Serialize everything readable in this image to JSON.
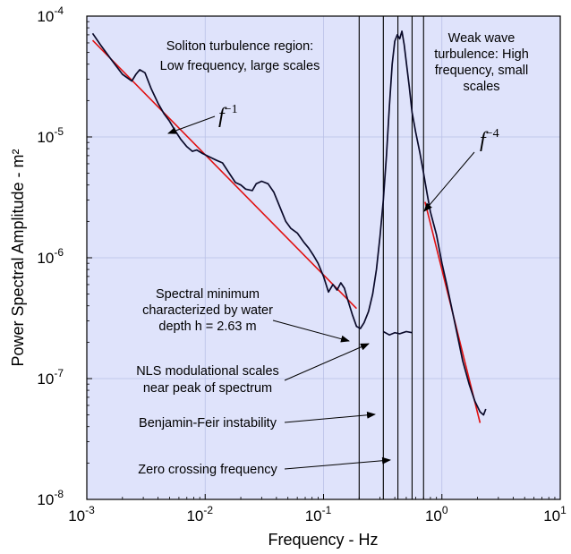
{
  "chart_data": {
    "type": "line",
    "xscale": "log",
    "yscale": "log",
    "xlim": [
      0.001,
      10
    ],
    "ylim": [
      1e-08,
      0.0001
    ],
    "xlabel": "Frequency - Hz",
    "ylabel": "Power Spectral Amplitude - m²",
    "grid": true,
    "background": "#dfe3fb",
    "colors": {
      "spectrum": "#0a0a2a",
      "fit": "#e01010",
      "grid": "#b9c0e6"
    },
    "x_ticks": [
      {
        "base": "10",
        "exp": "-3"
      },
      {
        "base": "10",
        "exp": "-2"
      },
      {
        "base": "10",
        "exp": "-1"
      },
      {
        "base": "10",
        "exp": "0"
      },
      {
        "base": "10",
        "exp": "1"
      }
    ],
    "y_ticks": [
      {
        "base": "10",
        "exp": "-8"
      },
      {
        "base": "10",
        "exp": "-7"
      },
      {
        "base": "10",
        "exp": "-6"
      },
      {
        "base": "10",
        "exp": "-5"
      },
      {
        "base": "10",
        "exp": "-4"
      }
    ],
    "spectrum": [
      [
        0.00112,
        7.2e-05
      ],
      [
        0.0013,
        5.8e-05
      ],
      [
        0.0016,
        4.4e-05
      ],
      [
        0.002,
        3.3e-05
      ],
      [
        0.0024,
        2.9e-05
      ],
      [
        0.0026,
        3.3e-05
      ],
      [
        0.0028,
        3.6e-05
      ],
      [
        0.0031,
        3.4e-05
      ],
      [
        0.0035,
        2.5e-05
      ],
      [
        0.004,
        1.9e-05
      ],
      [
        0.0045,
        1.55e-05
      ],
      [
        0.005,
        1.35e-05
      ],
      [
        0.0056,
        1.12e-05
      ],
      [
        0.0062,
        9.6e-06
      ],
      [
        0.007,
        8.3e-06
      ],
      [
        0.0078,
        7.6e-06
      ],
      [
        0.0085,
        7.8e-06
      ],
      [
        0.0095,
        7.3e-06
      ],
      [
        0.011,
        6.8e-06
      ],
      [
        0.0125,
        6.4e-06
      ],
      [
        0.014,
        6.1e-06
      ],
      [
        0.016,
        5e-06
      ],
      [
        0.018,
        4.2e-06
      ],
      [
        0.02,
        4e-06
      ],
      [
        0.022,
        3.7e-06
      ],
      [
        0.025,
        3.6e-06
      ],
      [
        0.027,
        4.1e-06
      ],
      [
        0.03,
        4.3e-06
      ],
      [
        0.034,
        4.1e-06
      ],
      [
        0.038,
        3.5e-06
      ],
      [
        0.043,
        2.6e-06
      ],
      [
        0.048,
        2e-06
      ],
      [
        0.053,
        1.75e-06
      ],
      [
        0.06,
        1.6e-06
      ],
      [
        0.068,
        1.35e-06
      ],
      [
        0.075,
        1.2e-06
      ],
      [
        0.082,
        1.05e-06
      ],
      [
        0.09,
        9e-07
      ],
      [
        0.1,
        7e-07
      ],
      [
        0.11,
        5.2e-07
      ],
      [
        0.12,
        6e-07
      ],
      [
        0.13,
        5.4e-07
      ],
      [
        0.14,
        6.2e-07
      ],
      [
        0.15,
        5.6e-07
      ],
      [
        0.16,
        4.5e-07
      ],
      [
        0.175,
        3.4e-07
      ],
      [
        0.19,
        2.7e-07
      ],
      [
        0.205,
        2.6e-07
      ],
      [
        0.22,
        2.9e-07
      ],
      [
        0.24,
        3.6e-07
      ],
      [
        0.26,
        5e-07
      ],
      [
        0.28,
        8e-07
      ],
      [
        0.3,
        1.5e-06
      ],
      [
        0.32,
        3e-06
      ],
      [
        0.34,
        7e-06
      ],
      [
        0.36,
        1.8e-05
      ],
      [
        0.38,
        4e-05
      ],
      [
        0.4,
        6.2e-05
      ],
      [
        0.42,
        7e-05
      ],
      [
        0.44,
        6.5e-05
      ],
      [
        0.46,
        7.5e-05
      ],
      [
        0.48,
        5.8e-05
      ],
      [
        0.5,
        4.2e-05
      ],
      [
        0.53,
        2.6e-05
      ],
      [
        0.56,
        1.6e-05
      ],
      [
        0.6,
        1.1e-05
      ],
      [
        0.65,
        7.5e-06
      ],
      [
        0.7,
        5e-06
      ],
      [
        0.75,
        3.4e-06
      ],
      [
        0.8,
        2.4e-06
      ],
      [
        0.9,
        1.55e-06
      ],
      [
        1.0,
        9e-07
      ],
      [
        1.1,
        6e-07
      ],
      [
        1.2,
        4e-07
      ],
      [
        1.35,
        2.3e-07
      ],
      [
        1.5,
        1.4e-07
      ],
      [
        1.7,
        9e-08
      ],
      [
        1.9,
        6.5e-08
      ],
      [
        2.1,
        5.3e-08
      ],
      [
        2.25,
        5e-08
      ],
      [
        2.35,
        5.6e-08
      ]
    ],
    "fit_low": [
      [
        0.00112,
        6.3e-05
      ],
      [
        0.19,
        3.8e-07
      ]
    ],
    "fit_high": [
      [
        0.72,
        2.9e-06
      ],
      [
        2.1,
        4.3e-08
      ]
    ],
    "vertical_lines_x": [
      0.2,
      0.32,
      0.425,
      0.56,
      0.7
    ],
    "formula_low": {
      "base": "f",
      "exp": "−1"
    },
    "formula_high": {
      "base": "f",
      "exp": "−4"
    },
    "annotations": {
      "soliton": [
        "Soliton turbulence region:",
        "Low frequency, large scales"
      ],
      "weak": [
        "Weak wave",
        "turbulence: High",
        "frequency, small",
        "scales"
      ],
      "minimum": [
        "Spectral minimum",
        "characterized by water",
        "depth h = 2.63 m"
      ],
      "nls": [
        "NLS modulational scales",
        "near peak of spectrum"
      ],
      "bf": "Benjamin-Feir instability",
      "zero": "Zero crossing frequency"
    }
  }
}
